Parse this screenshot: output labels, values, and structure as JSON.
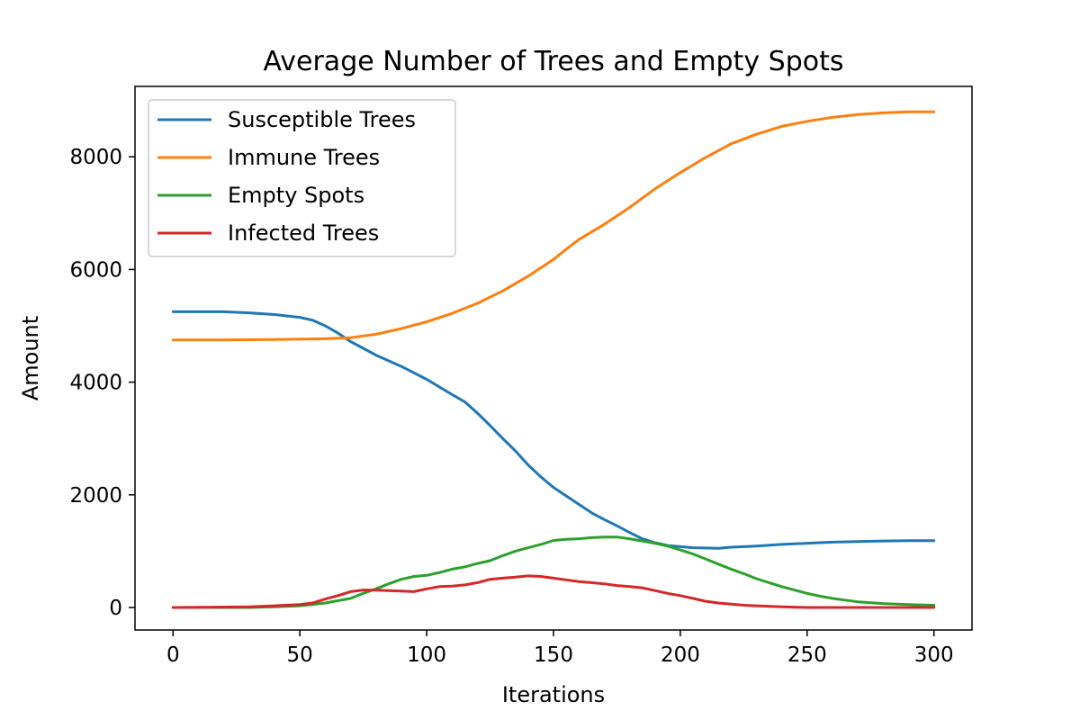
{
  "chart_data": {
    "type": "line",
    "title": "Average Number of Trees and Empty Spots",
    "xlabel": "Iterations",
    "ylabel": "Amount",
    "xlim": [
      -15,
      315
    ],
    "ylim": [
      -400,
      9250
    ],
    "xticks": [
      0,
      50,
      100,
      150,
      200,
      250,
      300
    ],
    "yticks": [
      0,
      2000,
      4000,
      6000,
      8000
    ],
    "legend_position": "upper-left",
    "grid": false,
    "series": [
      {
        "name": "Susceptible Trees",
        "color": "#1f77b4",
        "points": [
          [
            0,
            5250
          ],
          [
            10,
            5250
          ],
          [
            20,
            5250
          ],
          [
            30,
            5230
          ],
          [
            40,
            5200
          ],
          [
            50,
            5150
          ],
          [
            55,
            5100
          ],
          [
            60,
            5000
          ],
          [
            65,
            4870
          ],
          [
            70,
            4720
          ],
          [
            75,
            4600
          ],
          [
            80,
            4480
          ],
          [
            90,
            4280
          ],
          [
            100,
            4050
          ],
          [
            110,
            3780
          ],
          [
            115,
            3650
          ],
          [
            120,
            3450
          ],
          [
            125,
            3230
          ],
          [
            130,
            3000
          ],
          [
            135,
            2780
          ],
          [
            140,
            2530
          ],
          [
            145,
            2320
          ],
          [
            150,
            2130
          ],
          [
            155,
            1980
          ],
          [
            160,
            1830
          ],
          [
            165,
            1680
          ],
          [
            170,
            1560
          ],
          [
            175,
            1450
          ],
          [
            180,
            1330
          ],
          [
            185,
            1220
          ],
          [
            190,
            1150
          ],
          [
            195,
            1100
          ],
          [
            200,
            1080
          ],
          [
            205,
            1060
          ],
          [
            210,
            1055
          ],
          [
            215,
            1050
          ],
          [
            220,
            1070
          ],
          [
            230,
            1090
          ],
          [
            240,
            1120
          ],
          [
            250,
            1140
          ],
          [
            260,
            1160
          ],
          [
            270,
            1170
          ],
          [
            280,
            1180
          ],
          [
            290,
            1185
          ],
          [
            300,
            1185
          ]
        ]
      },
      {
        "name": "Immune Trees",
        "color": "#ff7f0e",
        "points": [
          [
            0,
            4750
          ],
          [
            20,
            4750
          ],
          [
            40,
            4755
          ],
          [
            60,
            4770
          ],
          [
            70,
            4790
          ],
          [
            80,
            4850
          ],
          [
            90,
            4950
          ],
          [
            100,
            5070
          ],
          [
            110,
            5220
          ],
          [
            120,
            5400
          ],
          [
            130,
            5620
          ],
          [
            140,
            5880
          ],
          [
            150,
            6180
          ],
          [
            155,
            6360
          ],
          [
            160,
            6530
          ],
          [
            170,
            6800
          ],
          [
            180,
            7100
          ],
          [
            190,
            7430
          ],
          [
            200,
            7720
          ],
          [
            210,
            7990
          ],
          [
            220,
            8230
          ],
          [
            230,
            8400
          ],
          [
            240,
            8540
          ],
          [
            250,
            8630
          ],
          [
            260,
            8700
          ],
          [
            270,
            8750
          ],
          [
            280,
            8780
          ],
          [
            290,
            8800
          ],
          [
            300,
            8800
          ]
        ]
      },
      {
        "name": "Empty Spots",
        "color": "#2ca02c",
        "points": [
          [
            0,
            0
          ],
          [
            30,
            0
          ],
          [
            40,
            10
          ],
          [
            50,
            30
          ],
          [
            60,
            80
          ],
          [
            70,
            160
          ],
          [
            75,
            250
          ],
          [
            80,
            330
          ],
          [
            85,
            420
          ],
          [
            90,
            500
          ],
          [
            95,
            550
          ],
          [
            100,
            570
          ],
          [
            105,
            620
          ],
          [
            110,
            680
          ],
          [
            115,
            720
          ],
          [
            120,
            780
          ],
          [
            125,
            830
          ],
          [
            130,
            920
          ],
          [
            135,
            1000
          ],
          [
            140,
            1060
          ],
          [
            145,
            1120
          ],
          [
            150,
            1190
          ],
          [
            155,
            1210
          ],
          [
            160,
            1220
          ],
          [
            165,
            1240
          ],
          [
            170,
            1250
          ],
          [
            175,
            1250
          ],
          [
            180,
            1220
          ],
          [
            185,
            1180
          ],
          [
            190,
            1140
          ],
          [
            195,
            1090
          ],
          [
            200,
            1020
          ],
          [
            205,
            950
          ],
          [
            210,
            860
          ],
          [
            215,
            770
          ],
          [
            220,
            680
          ],
          [
            225,
            600
          ],
          [
            230,
            510
          ],
          [
            235,
            440
          ],
          [
            240,
            370
          ],
          [
            245,
            310
          ],
          [
            250,
            250
          ],
          [
            255,
            200
          ],
          [
            260,
            160
          ],
          [
            265,
            130
          ],
          [
            270,
            100
          ],
          [
            280,
            70
          ],
          [
            290,
            50
          ],
          [
            300,
            40
          ]
        ]
      },
      {
        "name": "Infected Trees",
        "color": "#d62728",
        "points": [
          [
            0,
            0
          ],
          [
            30,
            10
          ],
          [
            40,
            30
          ],
          [
            50,
            50
          ],
          [
            55,
            80
          ],
          [
            60,
            150
          ],
          [
            65,
            210
          ],
          [
            70,
            280
          ],
          [
            75,
            310
          ],
          [
            80,
            310
          ],
          [
            85,
            300
          ],
          [
            90,
            290
          ],
          [
            95,
            280
          ],
          [
            100,
            330
          ],
          [
            105,
            370
          ],
          [
            110,
            380
          ],
          [
            115,
            400
          ],
          [
            120,
            440
          ],
          [
            125,
            500
          ],
          [
            130,
            520
          ],
          [
            135,
            540
          ],
          [
            140,
            560
          ],
          [
            145,
            550
          ],
          [
            150,
            520
          ],
          [
            155,
            490
          ],
          [
            160,
            460
          ],
          [
            165,
            440
          ],
          [
            170,
            420
          ],
          [
            175,
            390
          ],
          [
            180,
            370
          ],
          [
            185,
            350
          ],
          [
            190,
            300
          ],
          [
            195,
            250
          ],
          [
            200,
            210
          ],
          [
            205,
            160
          ],
          [
            210,
            110
          ],
          [
            215,
            80
          ],
          [
            220,
            60
          ],
          [
            225,
            40
          ],
          [
            230,
            30
          ],
          [
            240,
            10
          ],
          [
            250,
            0
          ],
          [
            300,
            0
          ]
        ]
      }
    ]
  }
}
